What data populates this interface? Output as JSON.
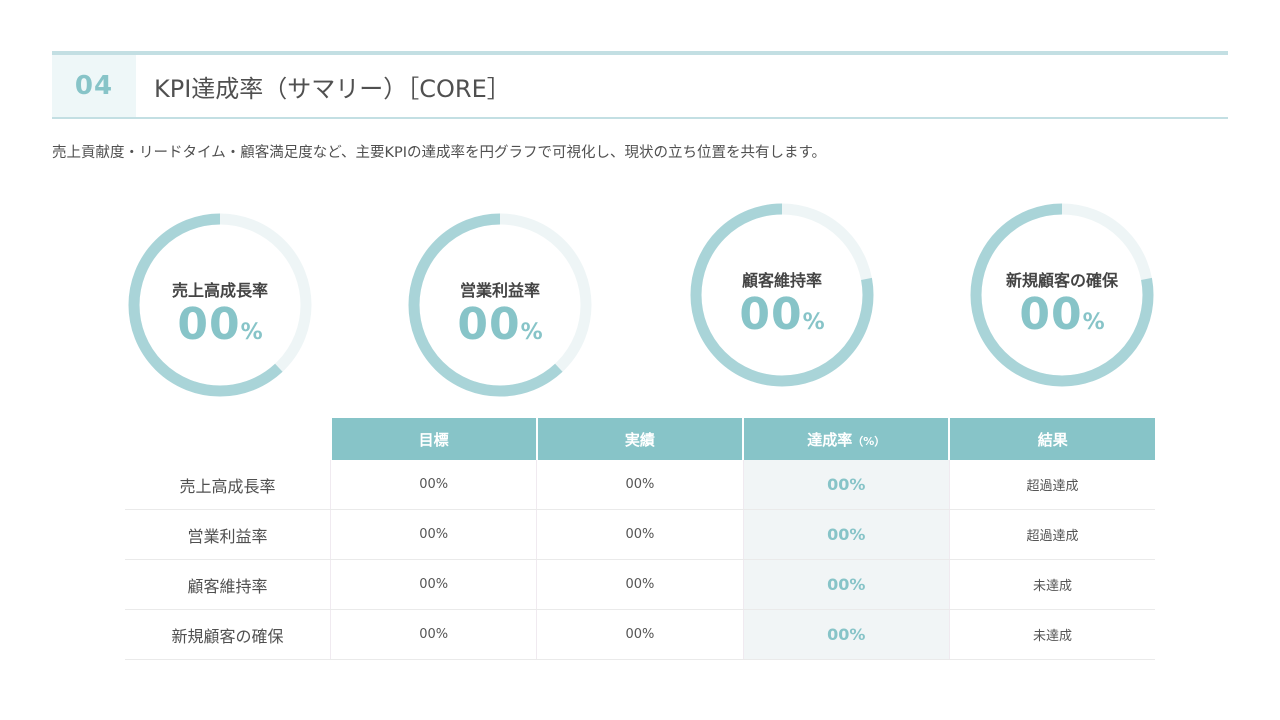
{
  "header": {
    "section_number": "04",
    "title": "KPI達成率（サマリー）［CORE］"
  },
  "subtitle": "売上貢献度・リードタイム・顧客満足度など、主要KPIの達成率を円グラフで可視化し、現状の立ち位置を共有します。",
  "donuts": [
    {
      "label": "売上高成長率",
      "value": "00",
      "unit": "%",
      "fill_fraction": 0.62
    },
    {
      "label": "営業利益率",
      "value": "00",
      "unit": "%",
      "fill_fraction": 0.62
    },
    {
      "label": "顧客維持率",
      "value": "00",
      "unit": "%",
      "fill_fraction": 0.78
    },
    {
      "label": "新規顧客の確保",
      "value": "00",
      "unit": "%",
      "fill_fraction": 0.78
    }
  ],
  "table": {
    "headers": [
      "目標",
      "実績",
      "達成率",
      "結果"
    ],
    "rate_unit": "（%）",
    "rows": [
      {
        "name": "売上高成長率",
        "target": "00%",
        "actual": "00%",
        "rate": "00%",
        "result": "超過達成"
      },
      {
        "name": "営業利益率",
        "target": "00%",
        "actual": "00%",
        "rate": "00%",
        "result": "超過達成"
      },
      {
        "name": "顧客維持率",
        "target": "00%",
        "actual": "00%",
        "rate": "00%",
        "result": "未達成"
      },
      {
        "name": "新規顧客の確保",
        "target": "00%",
        "actual": "00%",
        "rate": "00%",
        "result": "未達成"
      }
    ]
  },
  "colors": {
    "accent": "#87c4c8",
    "ring_track": "#eef5f6",
    "ring_fill": "#a9d4d8"
  }
}
